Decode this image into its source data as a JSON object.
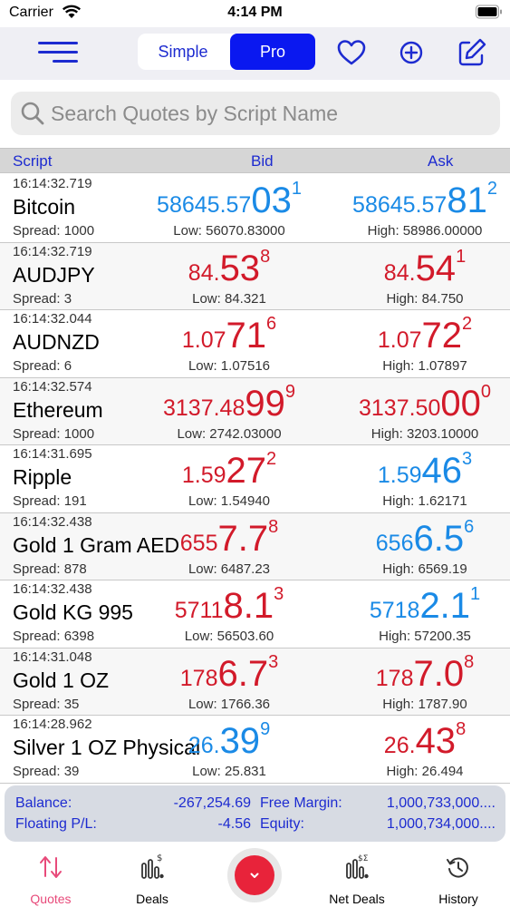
{
  "status_bar": {
    "carrier": "Carrier",
    "time": "4:14 PM"
  },
  "header": {
    "mode_options": [
      "Simple",
      "Pro"
    ],
    "selected_mode": "Pro"
  },
  "search": {
    "placeholder": "Search Quotes by Script Name"
  },
  "columns": {
    "script": "Script",
    "bid": "Bid",
    "ask": "Ask"
  },
  "quotes": [
    {
      "time": "16:14:32.719",
      "name": "Bitcoin",
      "spread": "Spread: 1000",
      "bid": {
        "small": "58645.57",
        "big": "03",
        "sup": "1",
        "dir": "up"
      },
      "ask": {
        "small": "58645.57",
        "big": "81",
        "sup": "2",
        "dir": "up"
      },
      "low": "Low: 56070.83000",
      "high": "High: 58986.00000"
    },
    {
      "time": "16:14:32.719",
      "name": "AUDJPY",
      "spread": "Spread: 3",
      "bid": {
        "small": "84.",
        "big": "53",
        "sup": "8",
        "dir": "down"
      },
      "ask": {
        "small": "84.",
        "big": "54",
        "sup": "1",
        "dir": "down"
      },
      "low": "Low: 84.321",
      "high": "High: 84.750"
    },
    {
      "time": "16:14:32.044",
      "name": "AUDNZD",
      "spread": "Spread: 6",
      "bid": {
        "small": "1.07",
        "big": "71",
        "sup": "6",
        "dir": "down"
      },
      "ask": {
        "small": "1.07",
        "big": "72",
        "sup": "2",
        "dir": "down"
      },
      "low": "Low: 1.07516",
      "high": "High: 1.07897"
    },
    {
      "time": "16:14:32.574",
      "name": "Ethereum",
      "spread": "Spread: 1000",
      "bid": {
        "small": "3137.48",
        "big": "99",
        "sup": "9",
        "dir": "down"
      },
      "ask": {
        "small": "3137.50",
        "big": "00",
        "sup": "0",
        "dir": "down"
      },
      "low": "Low: 2742.03000",
      "high": "High: 3203.10000"
    },
    {
      "time": "16:14:31.695",
      "name": "Ripple",
      "spread": "Spread: 191",
      "bid": {
        "small": "1.59",
        "big": "27",
        "sup": "2",
        "dir": "down"
      },
      "ask": {
        "small": "1.59",
        "big": "46",
        "sup": "3",
        "dir": "up"
      },
      "low": "Low: 1.54940",
      "high": "High: 1.62171"
    },
    {
      "time": "16:14:32.438",
      "name": "Gold 1 Gram AED",
      "spread": "Spread: 878",
      "bid": {
        "small": "655",
        "big": "7.7",
        "sup": "8",
        "dir": "down"
      },
      "ask": {
        "small": "656",
        "big": "6.5",
        "sup": "6",
        "dir": "up"
      },
      "low": "Low: 6487.23",
      "high": "High: 6569.19"
    },
    {
      "time": "16:14:32.438",
      "name": "Gold KG 995",
      "spread": "Spread: 6398",
      "bid": {
        "small": "5711",
        "big": "8.1",
        "sup": "3",
        "dir": "down"
      },
      "ask": {
        "small": "5718",
        "big": "2.1",
        "sup": "1",
        "dir": "up"
      },
      "low": "Low: 56503.60",
      "high": "High: 57200.35"
    },
    {
      "time": "16:14:31.048",
      "name": "Gold 1 OZ",
      "spread": "Spread: 35",
      "bid": {
        "small": "178",
        "big": "6.7",
        "sup": "3",
        "dir": "down"
      },
      "ask": {
        "small": "178",
        "big": "7.0",
        "sup": "8",
        "dir": "down"
      },
      "low": "Low: 1766.36",
      "high": "High: 1787.90"
    },
    {
      "time": "16:14:28.962",
      "name": "Silver 1 OZ Physical",
      "spread": "Spread: 39",
      "bid": {
        "small": "26.",
        "big": "39",
        "sup": "9",
        "dir": "up"
      },
      "ask": {
        "small": "26.",
        "big": "43",
        "sup": "8",
        "dir": "down"
      },
      "low": "Low: 25.831",
      "high": "High: 26.494"
    }
  ],
  "summary": {
    "balance_label": "Balance:",
    "balance_value": "-267,254.69",
    "floating_label": "Floating P/L:",
    "floating_value": "-4.56",
    "free_margin_label": "Free Margin:",
    "free_margin_value": "1,000,733,000....",
    "equity_label": "Equity:",
    "equity_value": "1,000,734,000...."
  },
  "tabs": [
    {
      "label": "Quotes",
      "icon": "arrows-up-down-icon",
      "active": true
    },
    {
      "label": "Deals",
      "icon": "deals-chart-icon",
      "active": false
    },
    {
      "label": "Net Deals",
      "icon": "net-deals-chart-icon",
      "active": false
    },
    {
      "label": "History",
      "icon": "history-clock-icon",
      "active": false
    }
  ],
  "colors": {
    "accent": "#1d2bd0",
    "pro_button": "#0a18f0",
    "price_up": "#1a8ae6",
    "price_down": "#d21a2a",
    "active_tab": "#e84a7a"
  }
}
